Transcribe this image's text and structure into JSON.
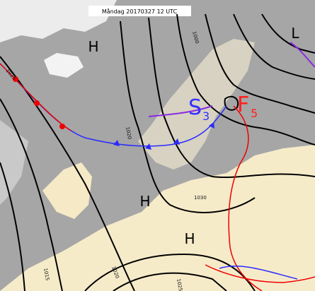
{
  "header": {
    "title": "Måndag 20170327 12 UTC"
  },
  "pressure_centers": [
    {
      "label": "H"
    },
    {
      "label": "H"
    },
    {
      "label": "H"
    },
    {
      "label": "L"
    }
  ],
  "system_labels": [
    {
      "letter": "S",
      "number": "3"
    },
    {
      "letter": "F",
      "number": "5"
    }
  ],
  "isobar_labels": [
    "1025",
    "1020",
    "1030",
    "1015",
    "1020",
    "1025",
    "1000"
  ]
}
